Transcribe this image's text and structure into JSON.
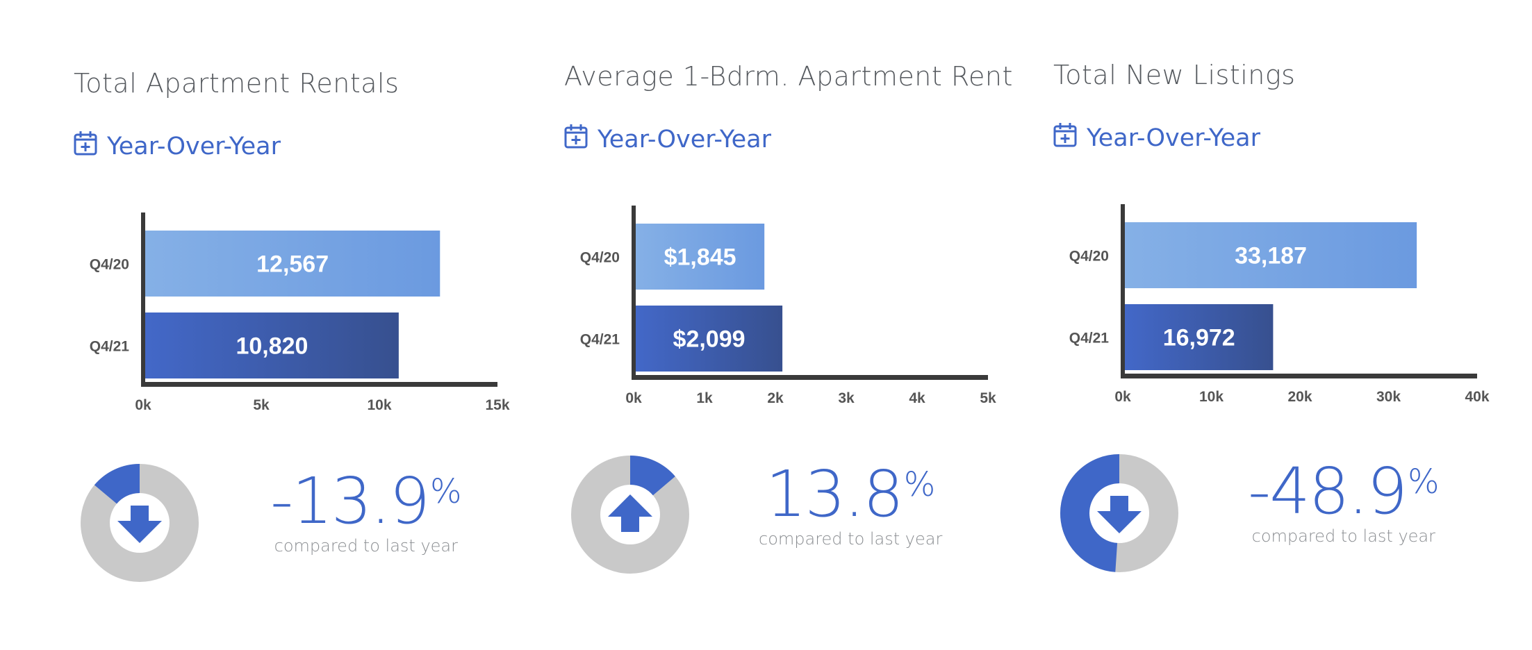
{
  "colors": {
    "accent": "#3f67c8",
    "bar_light_start": "#85b0e6",
    "bar_light_end": "#6b9ae0",
    "bar_dark_start": "#4368c8",
    "bar_dark_end": "#37508f",
    "axis": "#3a3a3a",
    "donut_track": "#c9c9c9",
    "title_text": "#55595e"
  },
  "panels": [
    {
      "title": "Total Apartment Rentals",
      "period_label": "Year-Over-Year",
      "period_icon": "calendar-plus-icon",
      "change_value": "-13.9",
      "change_sign": "%",
      "change_caption": "compared to last year",
      "direction": "down",
      "direction_icon": "arrow-down-icon",
      "donut_fraction": 0.139
    },
    {
      "title": "Average 1-Bdrm. Apartment Rent",
      "period_label": "Year-Over-Year",
      "period_icon": "calendar-plus-icon",
      "change_value": "13.8",
      "change_sign": "%",
      "change_caption": "compared to last year",
      "direction": "up",
      "direction_icon": "arrow-up-icon",
      "donut_fraction": 0.138
    },
    {
      "title": "Total New Listings",
      "period_label": "Year-Over-Year",
      "period_icon": "calendar-plus-icon",
      "change_value": "-48.9",
      "change_sign": "%",
      "change_caption": "compared to last year",
      "direction": "down",
      "direction_icon": "arrow-down-icon",
      "donut_fraction": 0.489
    }
  ],
  "chart_data": [
    {
      "type": "bar",
      "orientation": "horizontal",
      "categories": [
        "Q4/20",
        "Q4/21"
      ],
      "values": [
        12567,
        10820
      ],
      "value_labels": [
        "12,567",
        "10,820"
      ],
      "xlim": [
        0,
        15000
      ],
      "xticks": [
        0,
        5000,
        10000,
        15000
      ],
      "xtick_labels": [
        "0k",
        "5k",
        "10k",
        "15k"
      ],
      "grid": false
    },
    {
      "type": "bar",
      "orientation": "horizontal",
      "categories": [
        "Q4/20",
        "Q4/21"
      ],
      "values": [
        1845,
        2099
      ],
      "value_labels": [
        "$1,845",
        "$2,099"
      ],
      "xlim": [
        0,
        5000
      ],
      "xticks": [
        0,
        1000,
        2000,
        3000,
        4000,
        5000
      ],
      "xtick_labels": [
        "0k",
        "1k",
        "2k",
        "3k",
        "4k",
        "5k"
      ],
      "grid": false
    },
    {
      "type": "bar",
      "orientation": "horizontal",
      "categories": [
        "Q4/20",
        "Q4/21"
      ],
      "values": [
        33187,
        16972
      ],
      "value_labels": [
        "33,187",
        "16,972"
      ],
      "xlim": [
        0,
        40000
      ],
      "xticks": [
        0,
        10000,
        20000,
        30000,
        40000
      ],
      "xtick_labels": [
        "0k",
        "10k",
        "20k",
        "30k",
        "40k"
      ],
      "grid": false
    }
  ]
}
